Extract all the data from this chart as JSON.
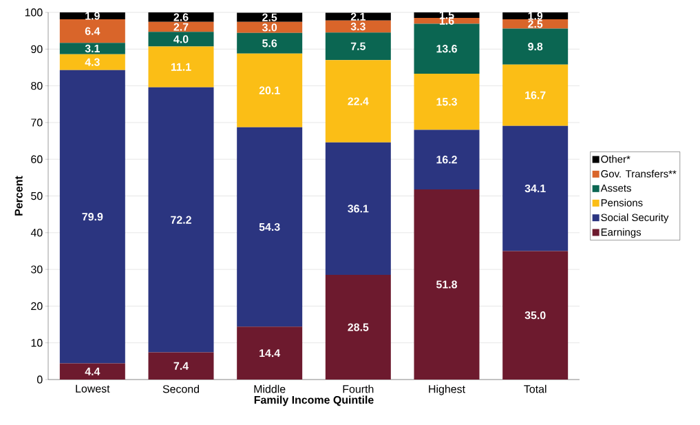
{
  "chart_data": {
    "type": "bar",
    "stacked": true,
    "xlabel": "Family Income Quintile",
    "ylabel": "Percent",
    "categories": [
      "Lowest",
      "Second",
      "Middle",
      "Fourth",
      "Highest",
      "Total"
    ],
    "series": [
      {
        "name": "Earnings",
        "color": "#6d1a2e",
        "values": [
          4.4,
          7.4,
          14.4,
          28.5,
          51.8,
          35.0
        ],
        "value_labels": [
          "4.4",
          "7.4",
          "14.4",
          "28.5",
          "51.8",
          "35.0"
        ]
      },
      {
        "name": "Social Security",
        "color": "#2b3580",
        "values": [
          79.9,
          72.2,
          54.3,
          36.1,
          16.2,
          34.1
        ],
        "value_labels": [
          "79.9",
          "72.2",
          "54.3",
          "36.1",
          "16.2",
          "34.1"
        ]
      },
      {
        "name": "Pensions",
        "color": "#fbbe16",
        "values": [
          4.3,
          11.1,
          20.1,
          22.4,
          15.3,
          16.7
        ],
        "value_labels": [
          "4.3",
          "11.1",
          "20.1",
          "22.4",
          "15.3",
          "16.7"
        ]
      },
      {
        "name": "Assets",
        "color": "#0b6652",
        "values": [
          3.1,
          4.0,
          5.6,
          7.5,
          13.6,
          9.8
        ],
        "value_labels": [
          "3.1",
          "4.0",
          "5.6",
          "7.5",
          "13.6",
          "9.8"
        ]
      },
      {
        "name": "Gov. Transfers**",
        "color": "#d9652a",
        "values": [
          6.4,
          2.7,
          3.0,
          3.3,
          1.6,
          2.5
        ],
        "value_labels": [
          "6.4",
          "2.7",
          "3.0",
          "3.3",
          "1.6",
          "2.5"
        ]
      },
      {
        "name": "Other*",
        "color": "#000000",
        "values": [
          1.9,
          2.6,
          2.5,
          2.1,
          1.5,
          1.9
        ],
        "value_labels": [
          "1.9",
          "2.6",
          "2.5",
          "2.1",
          "1.5",
          "1.9"
        ]
      }
    ],
    "ylim": [
      0,
      100
    ],
    "yticks": [
      0,
      10,
      20,
      30,
      40,
      50,
      60,
      70,
      80,
      90,
      100
    ],
    "grid": "y",
    "legend": "right"
  }
}
